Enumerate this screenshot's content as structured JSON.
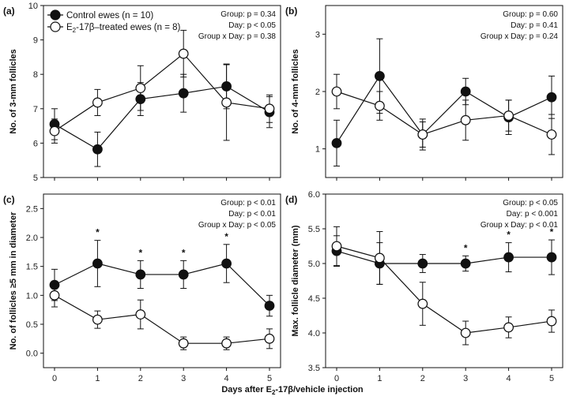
{
  "legend": {
    "control": "Control ewes (n = 10)",
    "treated_prefix": "E",
    "treated_sub": "2",
    "treated_suffix": "-17β–treated ewes (n = 8)"
  },
  "colors": {
    "control": "#111111",
    "treated": "#ffffff",
    "stroke": "#111111"
  },
  "xaxis": {
    "label_prefix": "Days after E",
    "label_sub": "2",
    "label_suffix": "-17β/vehicle injection",
    "ticks": [
      "0",
      "1",
      "2",
      "3",
      "4",
      "5"
    ]
  },
  "chart_data": [
    {
      "type": "line",
      "panel": "(a)",
      "ylabel": "No. of 3-mm follicles",
      "ylim": [
        5,
        10
      ],
      "yticks": [
        5,
        6,
        7,
        8,
        9,
        10
      ],
      "x": [
        0,
        1,
        2,
        3,
        4,
        5
      ],
      "stats": [
        "Group: p = 0.34",
        "Day: p < 0.05",
        "Group x Day: p = 0.38"
      ],
      "series": [
        {
          "name": "Control ewes (n = 10)",
          "values": [
            6.55,
            5.82,
            7.28,
            7.45,
            7.65,
            6.9
          ],
          "err": [
            0.45,
            0.5,
            0.48,
            0.55,
            0.65,
            0.45
          ]
        },
        {
          "name": "E2-17β–treated ewes (n = 8)",
          "values": [
            6.35,
            7.18,
            7.6,
            8.6,
            7.18,
            7.0
          ],
          "err": [
            0.35,
            0.38,
            0.65,
            0.68,
            1.1,
            0.4
          ]
        }
      ],
      "stars": []
    },
    {
      "type": "line",
      "panel": "(b)",
      "ylabel": "No. of 4-mm follicles",
      "ylim": [
        0.5,
        3.5
      ],
      "yticks": [
        1,
        2,
        3
      ],
      "x": [
        0,
        1,
        2,
        3,
        4,
        5
      ],
      "stats": [
        "Group: p = 0.60",
        "Day: p = 0.41",
        "Group x Day: p = 0.24"
      ],
      "series": [
        {
          "name": "Control ewes (n = 10)",
          "values": [
            1.1,
            2.27,
            1.25,
            2.0,
            1.55,
            1.9
          ],
          "err": [
            0.4,
            0.65,
            0.27,
            0.23,
            0.3,
            0.37
          ]
        },
        {
          "name": "E2-17β–treated ewes (n = 8)",
          "values": [
            2.0,
            1.75,
            1.25,
            1.5,
            1.58,
            1.25
          ],
          "err": [
            0.3,
            0.25,
            0.22,
            0.35,
            0.27,
            0.35
          ]
        }
      ],
      "stars": []
    },
    {
      "type": "line",
      "panel": "(c)",
      "ylabel": "No. of follicles ≥5 mm in diameter",
      "ylim": [
        -0.25,
        2.75
      ],
      "yticks": [
        0.0,
        0.5,
        1.0,
        1.5,
        2.0,
        2.5
      ],
      "ytick_labels": [
        "0.0",
        "0.5",
        "1.0",
        "1.5",
        "2.0",
        "2.5"
      ],
      "x": [
        0,
        1,
        2,
        3,
        4,
        5
      ],
      "stats": [
        "Group: p < 0.01",
        "Day: p < 0.01",
        "Group x Day: p < 0.05"
      ],
      "series": [
        {
          "name": "Control ewes (n = 10)",
          "values": [
            1.18,
            1.55,
            1.36,
            1.36,
            1.55,
            0.82
          ],
          "err": [
            0.27,
            0.4,
            0.24,
            0.24,
            0.33,
            0.18
          ]
        },
        {
          "name": "E2-17β–treated ewes (n = 8)",
          "values": [
            1.0,
            0.58,
            0.67,
            0.17,
            0.17,
            0.25
          ],
          "err": [
            0.2,
            0.15,
            0.25,
            0.11,
            0.11,
            0.17
          ]
        }
      ],
      "stars": [
        1,
        2,
        3,
        4
      ]
    },
    {
      "type": "line",
      "panel": "(d)",
      "ylabel": "Max. follicle diameter (mm)",
      "ylim": [
        3.5,
        6.0
      ],
      "yticks": [
        3.5,
        4.0,
        4.5,
        5.0,
        5.5,
        6.0
      ],
      "ytick_labels": [
        "3.5",
        "4.0",
        "4.5",
        "5.0",
        "5.5",
        "6.0"
      ],
      "x": [
        0,
        1,
        2,
        3,
        4,
        5
      ],
      "stats": [
        "Group: p < 0.05",
        "Day: p < 0.001",
        "Group x Day: p < 0.01"
      ],
      "series": [
        {
          "name": "Control ewes (n = 10)",
          "values": [
            5.18,
            5.0,
            5.0,
            5.0,
            5.09,
            5.09
          ],
          "err": [
            0.22,
            0.3,
            0.13,
            0.11,
            0.21,
            0.25
          ]
        },
        {
          "name": "E2-17β–treated ewes (n = 8)",
          "values": [
            5.25,
            5.08,
            4.42,
            4.0,
            4.08,
            4.17
          ],
          "err": [
            0.28,
            0.38,
            0.31,
            0.17,
            0.15,
            0.16
          ]
        }
      ],
      "stars": [
        3,
        4,
        5
      ]
    }
  ]
}
